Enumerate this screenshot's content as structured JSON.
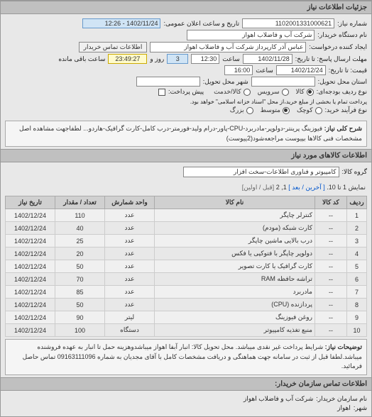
{
  "header": {
    "title": "جزئیات اطلاعات نیاز"
  },
  "form": {
    "request_no_label": "شماره نیاز:",
    "request_no": "1102001331000621",
    "announce_label": "تاریخ و ساعت اعلان عمومی:",
    "announce_value": "1402/11/24 - 12:26",
    "buyer_name_label": "نام دستگاه خریدار:",
    "buyer_name": "شرکت آب و فاضلاب اهواز",
    "requester_label": "ایجاد کننده درخواست:",
    "requester": "عباس آذر کارپرداز شرکت آب و فاضلاب اهواز",
    "contact_btn": "اطلاعات تماس خریدار",
    "reply_deadline_label": "مهلت ارسال پاسخ: تا تاریخ:",
    "reply_date": "1402/11/28",
    "reply_time_label": "ساعت",
    "reply_time": "12:30",
    "remain_label1": "روز و",
    "remain_days": "3",
    "remain_time": "23:49:27",
    "remain_label2": "ساعت باقی مانده",
    "price_to_label": "قیمت: تا تاریخ:",
    "price_date": "1402/12/24",
    "price_time_label": "ساعت",
    "price_time": "16:00",
    "delivery_label": "استان محل تحویل:",
    "delivery_city_label": "شهر محل تحویل:",
    "budget_row_label": "نوع ردیف بودجه‌ای:",
    "budget_opt_cash": "کالا",
    "budget_opt_service": "سرویس",
    "budget_opt_both": "کالا/خدمت",
    "prepay_label": "پیش پرداخت:",
    "prepay_opt1": "پرداخت تمام یا بخشی از مبلغ خرید،از محل \"اسناد خزانه اسلامی\" خواهد بود.",
    "trans_type_label": "نوع فرآیند خرید:",
    "trans_opt_small": "کوچک",
    "trans_opt_medium": "متوسط",
    "trans_opt_large": "بزرگ"
  },
  "overall_desc": {
    "label": "شرح کلی نیاز:",
    "text": "فیوزینگ پرینتر-دولوپر-مادربرد-CPU-پاور-درام ولید-فورمتر-درب کامل-کارت گرافیک-هاردو... لطفاجهت مشاهده اصل مشخصات فنی کالاها بپیوست مراجعه‌شود(2پیوست)"
  },
  "items_header": {
    "title": "اطلاعات کالاهای مورد نیاز",
    "group_label": "گروه کالا:",
    "group_value": "کامپیوتر و فناوری اطلاعات-سخت افزار"
  },
  "pagination": {
    "text_prefix": "نمایش 1 تا 10.",
    "last": "[ آخرین /",
    "next": "بعد ]",
    "current": "1, 2",
    "first": "[قبل / اولین]"
  },
  "columns": [
    "ردیف",
    "کد کالا",
    "نام کالا",
    "واحد شمارش",
    "تعداد / مقدار",
    "تاریخ نیاز"
  ],
  "rows": [
    {
      "n": "1",
      "code": "--",
      "name": "کنترلر چاپگر",
      "unit": "عدد",
      "qty": "110",
      "date": "1402/12/24"
    },
    {
      "n": "2",
      "code": "--",
      "name": "کارت شبکه (مودم)",
      "unit": "عدد",
      "qty": "40",
      "date": "1402/12/24"
    },
    {
      "n": "3",
      "code": "--",
      "name": "درب بالایی ماشین چاپگر",
      "unit": "عدد",
      "qty": "25",
      "date": "1402/12/24"
    },
    {
      "n": "4",
      "code": "--",
      "name": "دولوپر چاپگر با فتوکپی یا فکس",
      "unit": "عدد",
      "qty": "20",
      "date": "1402/12/24"
    },
    {
      "n": "5",
      "code": "--",
      "name": "کارت گرافیک یا کارت تصویر",
      "unit": "عدد",
      "qty": "50",
      "date": "1402/12/24"
    },
    {
      "n": "6",
      "code": "--",
      "name": "تراشه حافظه RAM",
      "unit": "عدد",
      "qty": "70",
      "date": "1402/12/24"
    },
    {
      "n": "7",
      "code": "--",
      "name": "مادربرد",
      "unit": "عدد",
      "qty": "85",
      "date": "1402/12/24"
    },
    {
      "n": "8",
      "code": "--",
      "name": "پردازنده (CPU)",
      "unit": "عدد",
      "qty": "50",
      "date": "1402/12/24"
    },
    {
      "n": "9",
      "code": "--",
      "name": "روغن فیوزینگ",
      "unit": "لیتر",
      "qty": "90",
      "date": "1402/12/24"
    },
    {
      "n": "10",
      "code": "--",
      "name": "منبع تغذیه کامپیوتر",
      "unit": "دستگاه",
      "qty": "100",
      "date": "1402/12/24"
    }
  ],
  "notes": {
    "label": "توضیحات نیاز:",
    "text": "شرایط پرداخت غیر نقدی میباشد. محل تحویل کالا: انبار آبفا اهواز میباشدوهزینه حمل تا انبار به عهده فروشنده میباشد.لطفا قبل از ثبت در سامانه جهت هماهنگی و دریافت مشخصات کامل با آقای مجدیان به شماره 09163111096 تماس حاصل فرمائید."
  },
  "footer": {
    "title": "اطلاعات تماس سازمان خریدار:",
    "org_label": "نام سازمان خریدار:",
    "org_value": "شرکت آب و فاضلاب اهواز",
    "city_label": "شهر:",
    "city_value": "اهواز"
  }
}
